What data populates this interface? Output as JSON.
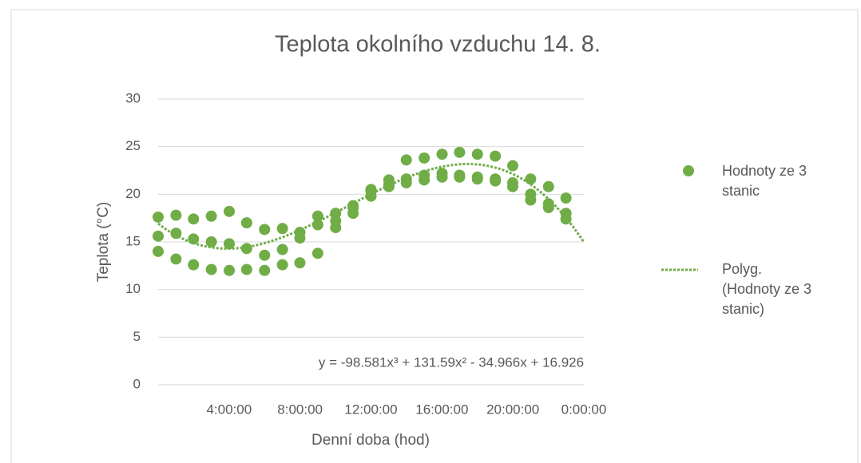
{
  "chart_data": {
    "type": "scatter",
    "title": "Teplota okolního vzduchu  14. 8.",
    "x_label": "Denní doba (hod)",
    "y_label": "Teplota (°C)",
    "xlim": [
      0,
      1
    ],
    "ylim": [
      0,
      30
    ],
    "xticks": [
      {
        "value": 0.16667,
        "label": "4:00:00"
      },
      {
        "value": 0.33333,
        "label": "8:00:00"
      },
      {
        "value": 0.5,
        "label": "12:00:00"
      },
      {
        "value": 0.66667,
        "label": "16:00:00"
      },
      {
        "value": 0.83333,
        "label": "20:00:00"
      },
      {
        "value": 1,
        "label": "0:00:00"
      }
    ],
    "yticks": [
      0,
      5,
      10,
      15,
      20,
      25,
      30
    ],
    "grid": true,
    "legend": "right",
    "series": [
      {
        "name": "Hodnoty ze 3 stanic",
        "color": "#70ad47",
        "x": [
          0,
          0.042,
          0.083,
          0.125,
          0.167,
          0.208,
          0.25,
          0.292,
          0.333,
          0.375,
          0.417,
          0.458,
          0.5,
          0.542,
          0.583,
          0.625,
          0.667,
          0.708,
          0.75,
          0.792,
          0.833,
          0.875,
          0.917,
          0.958,
          0,
          0.042,
          0.083,
          0.125,
          0.167,
          0.208,
          0.25,
          0.292,
          0.333,
          0.375,
          0.417,
          0.458,
          0.5,
          0.542,
          0.583,
          0.625,
          0.667,
          0.708,
          0.75,
          0.792,
          0.833,
          0.875,
          0.917,
          0.958,
          0,
          0.042,
          0.083,
          0.125,
          0.167,
          0.208,
          0.25,
          0.292,
          0.333,
          0.375,
          0.417,
          0.458,
          0.5,
          0.542,
          0.583,
          0.625,
          0.667,
          0.708,
          0.75,
          0.792,
          0.833,
          0.875,
          0.917,
          0.958
        ],
        "values": [
          17.6,
          17.8,
          17.4,
          17.7,
          18.2,
          17.0,
          16.3,
          16.4,
          16.0,
          17.7,
          17.2,
          18.6,
          19.8,
          21.5,
          23.6,
          23.8,
          24.2,
          24.4,
          24.2,
          24.0,
          23.0,
          21.6,
          20.8,
          19.6,
          15.6,
          15.9,
          15.3,
          15.0,
          14.8,
          14.3,
          13.6,
          14.2,
          15.4,
          16.8,
          18.0,
          18.8,
          20.5,
          21.0,
          21.6,
          22.0,
          22.2,
          22.0,
          21.8,
          21.6,
          21.2,
          20.0,
          19.0,
          18.0,
          14.0,
          13.2,
          12.6,
          12.1,
          12.0,
          12.1,
          12.0,
          12.6,
          12.8,
          13.8,
          16.5,
          18.0,
          20.3,
          20.8,
          21.2,
          21.5,
          21.8,
          21.8,
          21.6,
          21.4,
          20.8,
          19.4,
          18.6,
          17.4
        ]
      }
    ],
    "trendline": {
      "name": "Polyg. (Hodnoty ze 3 stanic)",
      "color": "#70ad47",
      "coefficients": [
        -98.581,
        131.59,
        -34.966,
        16.926
      ],
      "equation": "y = -98.581x³ + 131.59x² - 34.966x + 16.926"
    }
  }
}
